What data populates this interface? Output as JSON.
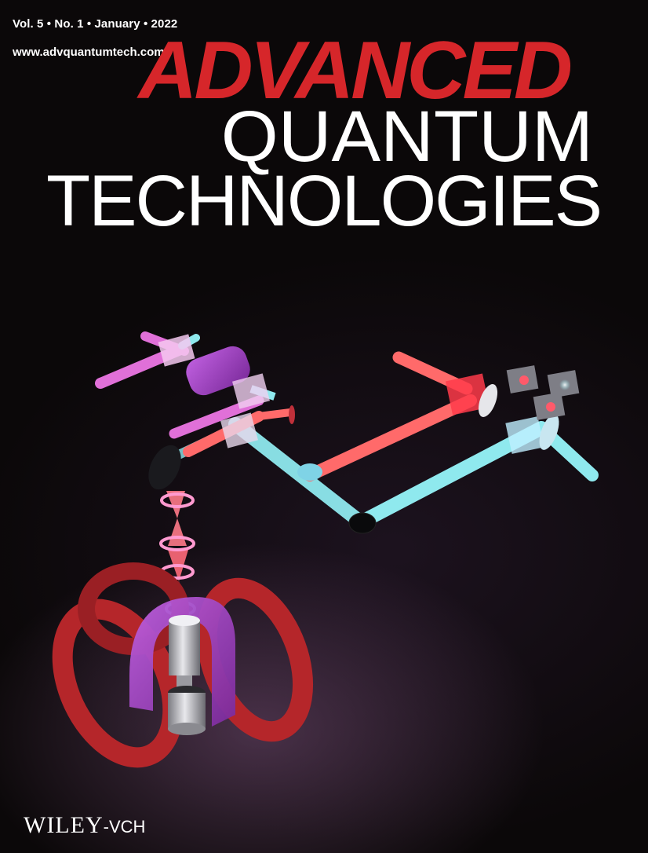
{
  "issue_line": "Vol. 5 • No. 1 • January • 2022",
  "website": "www.advquantumtech.com",
  "title": {
    "line1": "ADVANCED",
    "line2": "QUANTUM",
    "line3": "TECHNOLOGIES"
  },
  "publisher": {
    "name": "WILEY",
    "suffix": "-VCH"
  },
  "colors": {
    "title_red": "#d6262a",
    "background": "#0b0809",
    "beam_red": "#ff6a6a",
    "beam_cyan": "#8fe9ee",
    "beam_magenta": "#e070d8",
    "coil_red": "#b5262a"
  }
}
